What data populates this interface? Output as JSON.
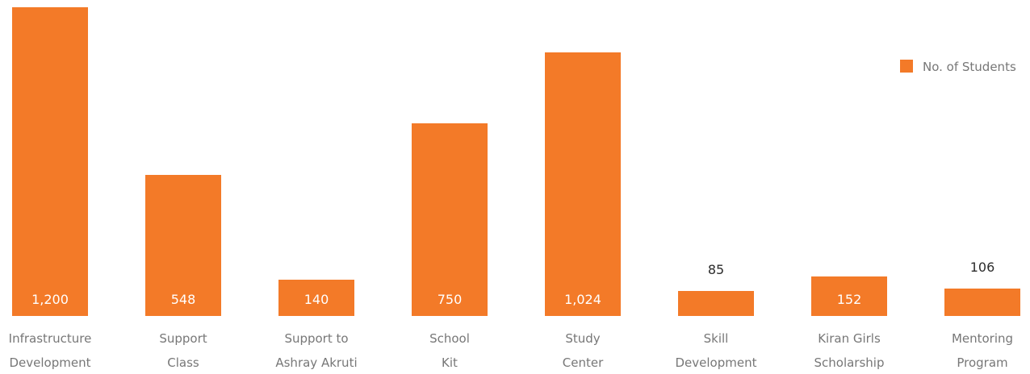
{
  "chart_data": {
    "type": "bar",
    "categories": [
      "Infrastructure Development",
      "Support Class",
      "Support to Ashray Akruti",
      "School Kit",
      "Study Center",
      "Skill Development",
      "Kiran Girls Scholarship",
      "Mentoring Program"
    ],
    "category_lines": [
      [
        "Infrastructure",
        "Development"
      ],
      [
        "Support",
        "Class"
      ],
      [
        "Support to",
        "Ashray Akruti"
      ],
      [
        "School",
        "Kit"
      ],
      [
        "Study",
        "Center"
      ],
      [
        "Skill",
        "Development"
      ],
      [
        "Kiran Girls",
        "Scholarship"
      ],
      [
        "Mentoring",
        "Program"
      ]
    ],
    "series": [
      {
        "name": "No. of Students",
        "values": [
          1200,
          548,
          140,
          750,
          1024,
          85,
          152,
          106
        ],
        "value_labels": [
          "1,200",
          "548",
          "140",
          "750",
          "1,024",
          "85",
          "152",
          "106"
        ],
        "color": "#F37A28"
      }
    ],
    "legend": {
      "position": "top-right",
      "label": "No. of Students"
    },
    "title": "",
    "xlabel": "",
    "ylabel": "",
    "ylim": [
      0,
      1200
    ],
    "grid": false
  }
}
